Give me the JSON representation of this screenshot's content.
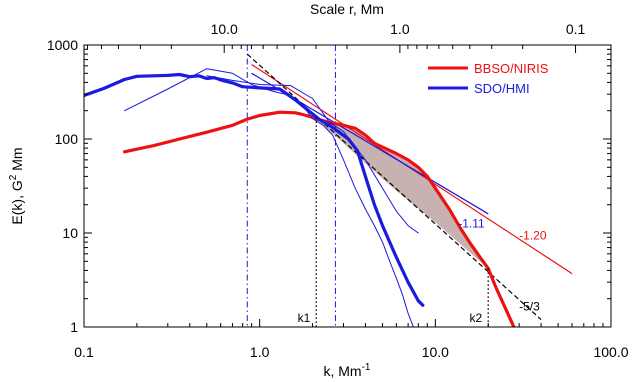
{
  "chart_data": {
    "type": "line",
    "xscale": "log",
    "yscale": "log",
    "xlim": [
      0.1,
      100
    ],
    "ylim": [
      1,
      1000
    ],
    "xlabel": "k, Mm",
    "xlabel_sup": "-1",
    "ylabel": "E(k), G",
    "ylabel_sup": "2",
    "ylabel_tail": " Mm",
    "top_axis_label": "Scale r,  Mm",
    "top_ticks": [
      {
        "label": "10.0",
        "value": 10.0
      },
      {
        "label": "1.0",
        "value": 1.0
      },
      {
        "label": "0.1",
        "value": 0.1
      }
    ],
    "x_ticks": [
      {
        "label": "0.1",
        "value": 0.1
      },
      {
        "label": "1.0",
        "value": 1.0
      },
      {
        "label": "10.0",
        "value": 10.0
      },
      {
        "label": "100.0",
        "value": 100.0
      }
    ],
    "y_ticks": [
      {
        "label": "1",
        "value": 1
      },
      {
        "label": "10",
        "value": 10
      },
      {
        "label": "100",
        "value": 100
      },
      {
        "label": "1000",
        "value": 1000
      }
    ],
    "grid": false,
    "legend_position": "top-right",
    "colors": {
      "red": "#ee1111",
      "blue": "#1a1ae0",
      "black": "#000000",
      "shade": "#c8b1b1"
    },
    "legend": [
      {
        "name": "BBSO/NIRIS",
        "color": "#ee1111"
      },
      {
        "name": "SDO/HMI",
        "color": "#1a1ae0"
      }
    ],
    "series": [
      {
        "name": "BBSO/NIRIS",
        "color": "#ee1111",
        "width": 3.2,
        "x": [
          0.17,
          0.25,
          0.35,
          0.5,
          0.7,
          0.85,
          1.0,
          1.3,
          1.6,
          1.8,
          2.0,
          2.2,
          2.5,
          3.0,
          3.5,
          4.0,
          4.5,
          5.0,
          6.0,
          7.0,
          8.0,
          9.0,
          10.0,
          12.0,
          14.0,
          16.0,
          18.0,
          20.0,
          22.0,
          25.0,
          28.0
        ],
        "y": [
          73,
          85,
          100,
          118,
          140,
          163,
          178,
          193,
          190,
          180,
          170,
          160,
          150,
          140,
          130,
          110,
          90,
          82,
          70,
          60,
          50,
          40,
          30,
          18,
          11,
          7.5,
          5.5,
          4.2,
          2.7,
          1.6,
          1.0
        ]
      },
      {
        "name": "SDO/HMI",
        "color": "#1a1ae0",
        "width": 3.2,
        "x": [
          0.1,
          0.13,
          0.17,
          0.2,
          0.25,
          0.3,
          0.35,
          0.4,
          0.45,
          0.5,
          0.55,
          0.6,
          0.7,
          0.8,
          1.0,
          1.3,
          1.6,
          1.9,
          2.2,
          2.5,
          2.8,
          3.2,
          3.6,
          4.0,
          4.5,
          5.0,
          5.5,
          6.0,
          7.0,
          8.0,
          8.5
        ],
        "y": [
          290,
          345,
          430,
          465,
          470,
          475,
          485,
          460,
          470,
          440,
          450,
          425,
          395,
          360,
          350,
          340,
          260,
          200,
          160,
          140,
          120,
          100,
          75,
          40,
          20,
          12,
          8,
          5.5,
          3.0,
          1.9,
          1.7
        ]
      },
      {
        "name": "",
        "color": "#1a1ae0",
        "width": 1.0,
        "x": [
          0.17,
          0.3,
          0.5,
          0.7,
          0.9,
          1.2,
          1.5,
          1.8,
          2.0,
          2.3,
          2.6,
          3.0,
          3.5,
          4.0,
          4.5,
          5.0,
          5.5,
          6.0,
          6.5,
          7.0,
          7.5
        ],
        "y": [
          200,
          340,
          560,
          500,
          380,
          320,
          290,
          215,
          165,
          140,
          110,
          60,
          30,
          18,
          12,
          8,
          5,
          3.3,
          2.2,
          1.4,
          1.0
        ]
      },
      {
        "name": "",
        "color": "#1a1ae0",
        "width": 1.0,
        "x": [
          0.5,
          0.7,
          1.0,
          1.5,
          2.0,
          2.5,
          3.0,
          4.0,
          5.0,
          6.0,
          7.0,
          8.0
        ],
        "y": [
          470,
          420,
          380,
          370,
          270,
          150,
          120,
          60,
          30,
          17,
          12,
          10
        ]
      }
    ],
    "fits": [
      {
        "slope_label": "-1.20",
        "color": "#ee1111",
        "style": "solid",
        "x": [
          0.9,
          60
        ],
        "y": [
          620,
          3.7
        ]
      },
      {
        "slope_label": "-1.11",
        "color": "#1a1ae0",
        "style": "solid",
        "x": [
          0.9,
          20
        ],
        "y": [
          500,
          16
        ]
      },
      {
        "slope_label": "-5/3",
        "color": "#000000",
        "style": "dashed",
        "x": [
          0.85,
          40
        ],
        "y": [
          800,
          1.2
        ]
      }
    ],
    "k_markers": [
      {
        "label": "k1",
        "x": 2.1,
        "y_top": 170
      },
      {
        "label": "k2",
        "x": 20,
        "y_top": 4.2
      }
    ],
    "v_lines": [
      {
        "x": 0.85,
        "color": "#1a1ae0"
      },
      {
        "x": 2.7,
        "color": "#1a1ae0"
      }
    ],
    "shaded_region": {
      "upper": {
        "x": [
          2.2,
          3.0,
          4.0,
          5.0,
          6.0,
          7.0,
          8.0,
          9.0,
          10.0,
          12.0,
          14.0,
          16.0,
          18.0,
          20.0
        ],
        "y": [
          165,
          140,
          110,
          82,
          70,
          60,
          50,
          40,
          30,
          18,
          11,
          7.5,
          5.5,
          4.2
        ]
      },
      "lower": {
        "x": [
          20.0,
          10.0,
          6.0,
          4.0,
          3.0,
          2.2
        ],
        "y": [
          4.2,
          13,
          28,
          55,
          90,
          150
        ]
      }
    }
  }
}
